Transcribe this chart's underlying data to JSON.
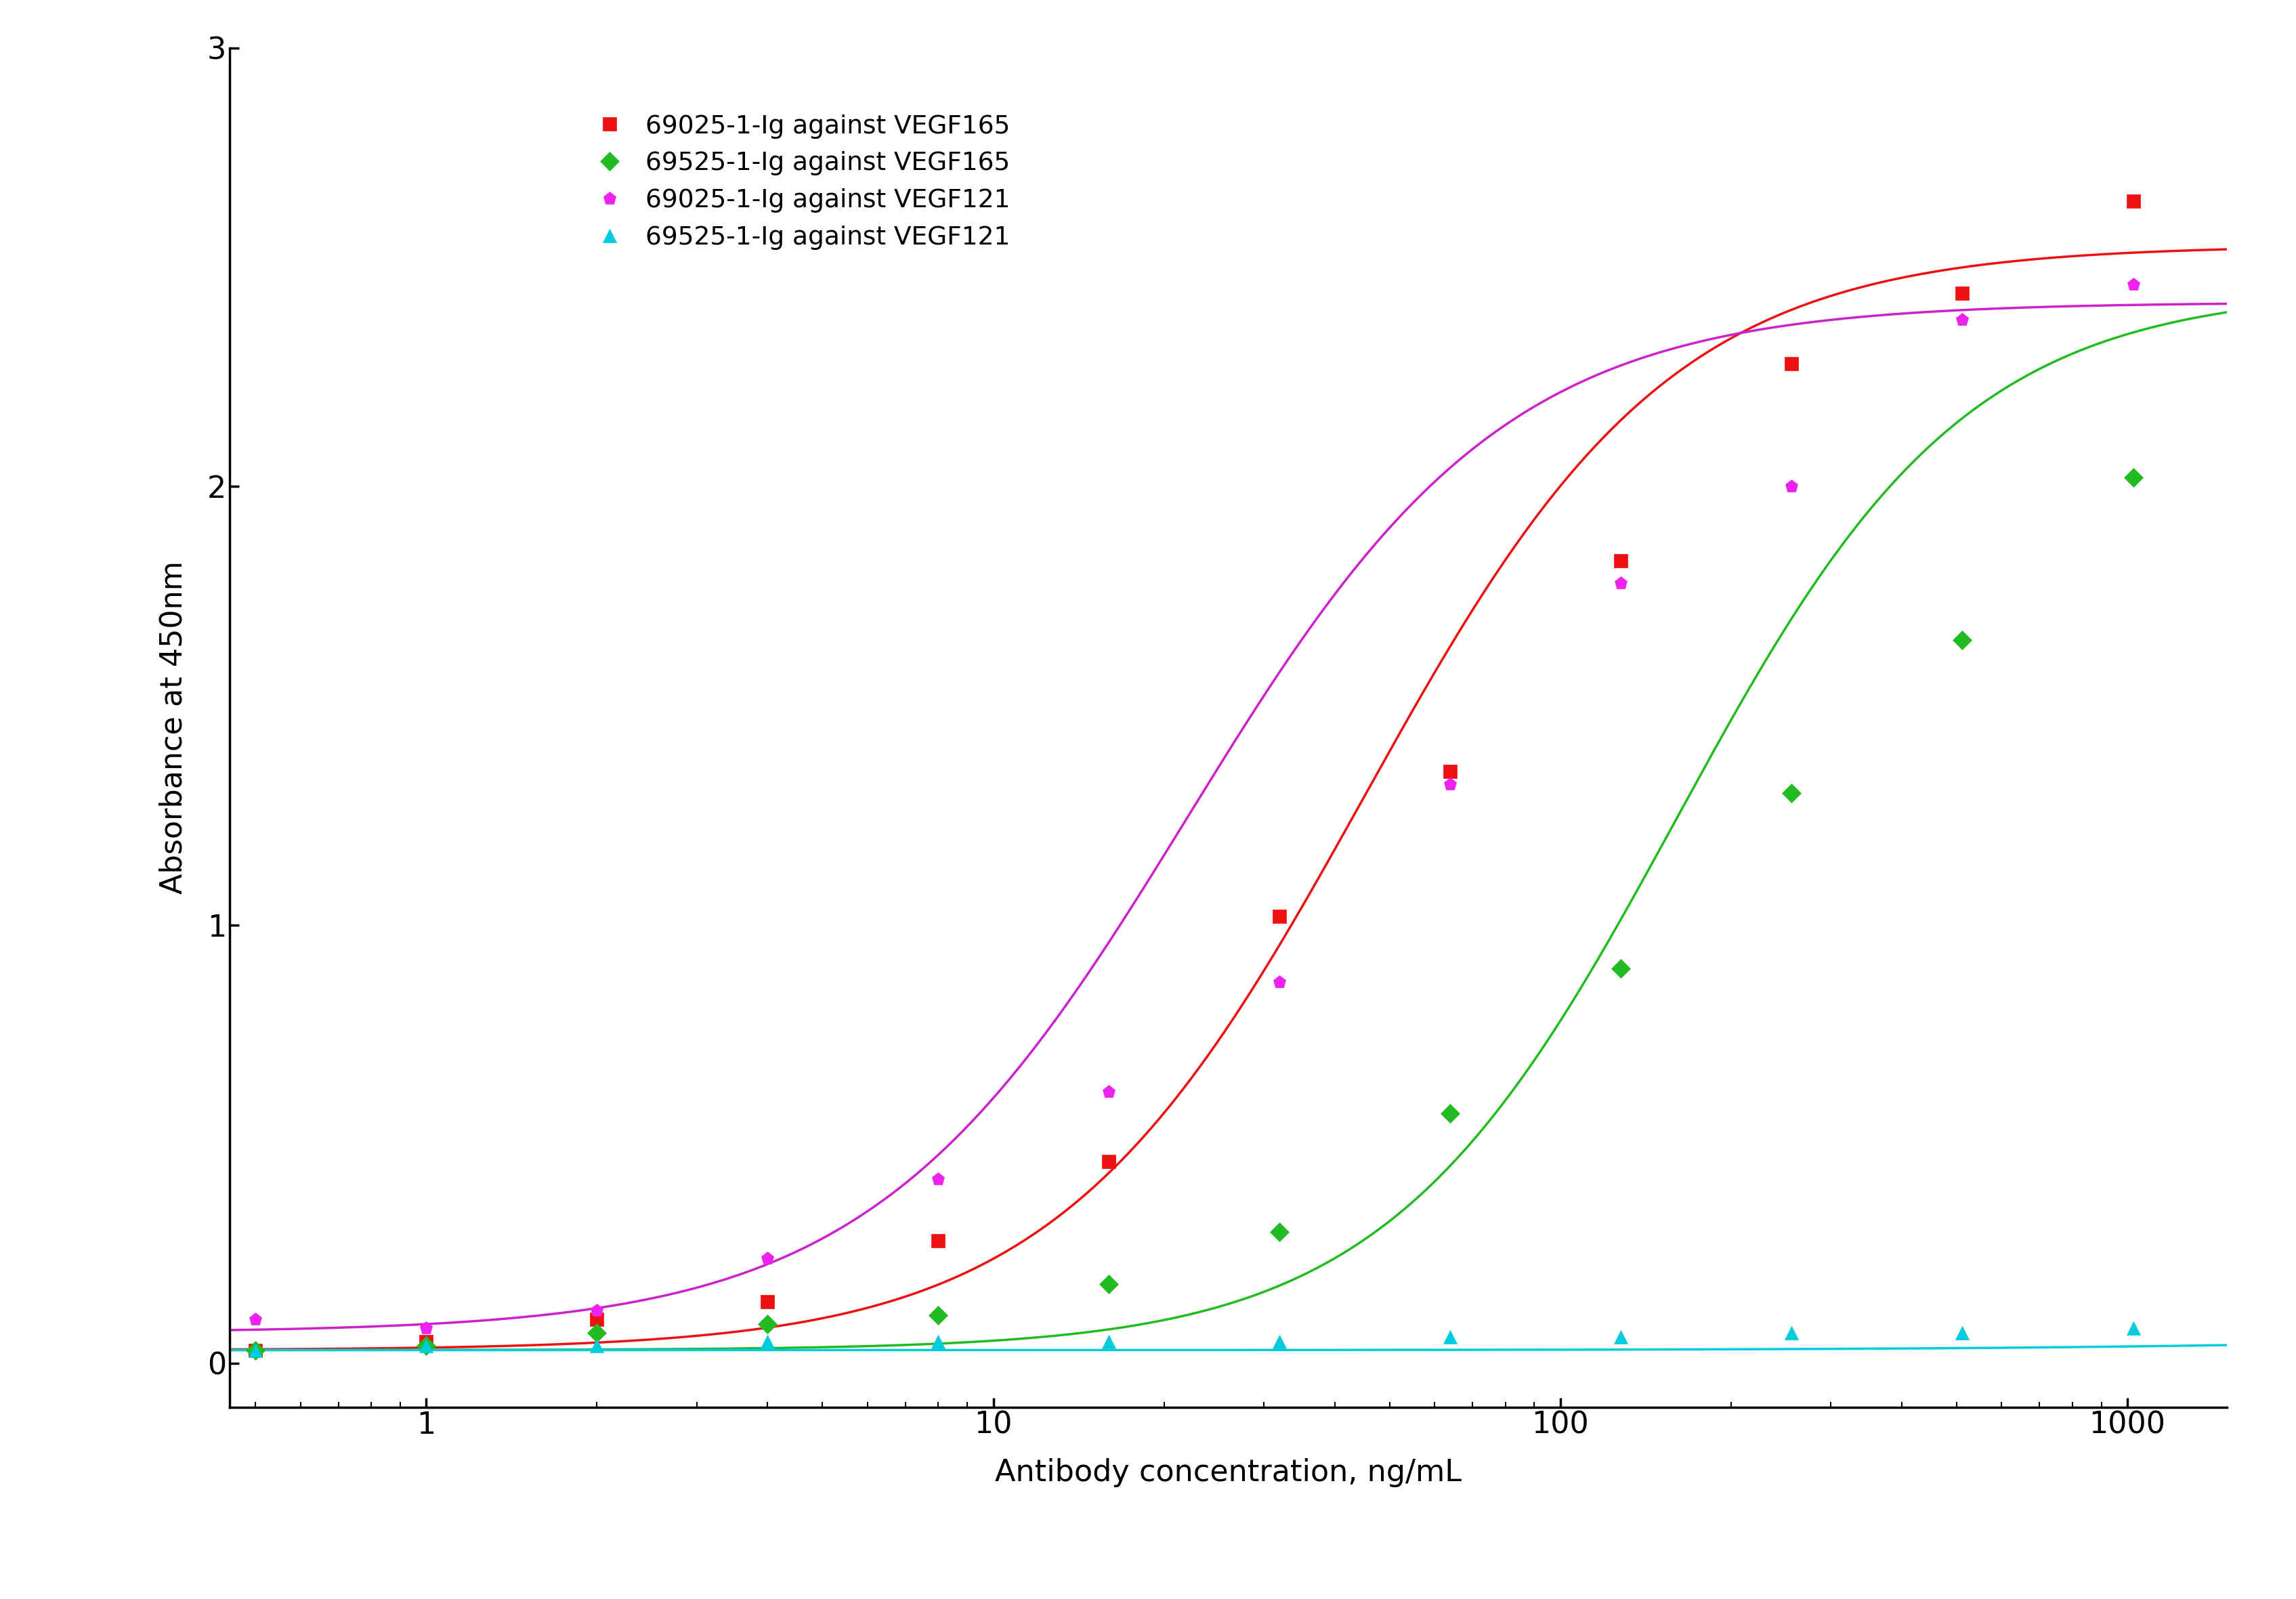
{
  "series": [
    {
      "label": "69025-1-Ig against VEGF165",
      "color": "#ee1111",
      "marker": "s",
      "marker_color": "#ee1111",
      "x": [
        0.5,
        1.0,
        2.0,
        4.0,
        8.0,
        16.0,
        32.0,
        64.0,
        128.0,
        256.0,
        512.0,
        1024.0
      ],
      "y": [
        0.03,
        0.05,
        0.1,
        0.14,
        0.28,
        0.46,
        1.02,
        1.35,
        1.83,
        2.28,
        2.44,
        2.65
      ],
      "fit_top": 2.55,
      "fit_bottom": 0.03,
      "fit_ec50": 45.0,
      "fit_hill": 1.6
    },
    {
      "label": "69525-1-Ig against VEGF165",
      "color": "#22bb22",
      "marker": "D",
      "marker_color": "#22bb22",
      "x": [
        0.5,
        1.0,
        2.0,
        4.0,
        8.0,
        16.0,
        32.0,
        64.0,
        128.0,
        256.0,
        512.0,
        1024.0
      ],
      "y": [
        0.03,
        0.04,
        0.07,
        0.09,
        0.11,
        0.18,
        0.3,
        0.57,
        0.9,
        1.3,
        1.65,
        2.02
      ],
      "fit_top": 2.45,
      "fit_bottom": 0.03,
      "fit_ec50": 160.0,
      "fit_hill": 1.7
    },
    {
      "label": "69025-1-Ig against VEGF121",
      "color": "#cc22cc",
      "marker": "p",
      "marker_color": "#ee22ee",
      "x": [
        0.5,
        1.0,
        2.0,
        4.0,
        8.0,
        16.0,
        32.0,
        64.0,
        128.0,
        256.0,
        512.0,
        1024.0
      ],
      "y": [
        0.1,
        0.08,
        0.12,
        0.24,
        0.42,
        0.62,
        0.87,
        1.32,
        1.78,
        2.0,
        2.38,
        2.46
      ],
      "fit_top": 2.42,
      "fit_bottom": 0.07,
      "fit_ec50": 22.0,
      "fit_hill": 1.55
    },
    {
      "label": "69525-1-Ig against VEGF121",
      "color": "#00ccdd",
      "marker": "^",
      "marker_color": "#00ccdd",
      "x": [
        0.5,
        1.0,
        2.0,
        4.0,
        8.0,
        16.0,
        32.0,
        64.0,
        128.0,
        256.0,
        512.0,
        1024.0
      ],
      "y": [
        0.03,
        0.04,
        0.04,
        0.05,
        0.05,
        0.05,
        0.05,
        0.06,
        0.06,
        0.07,
        0.07,
        0.08
      ],
      "fit_top": 0.08,
      "fit_bottom": 0.03,
      "fit_ec50": 5000.0,
      "fit_hill": 1.0
    }
  ],
  "xlabel": "Antibody concentration, ng/mL",
  "ylabel": "Absorbance at 450nm",
  "xlim": [
    0.45,
    1500
  ],
  "ylim": [
    -0.1,
    3.0
  ],
  "yticks": [
    0,
    1,
    2,
    3
  ],
  "xticks": [
    1,
    10,
    100,
    1000
  ],
  "background_color": "#ffffff",
  "marker_size": 14,
  "line_width": 2.5,
  "font_size": 32,
  "legend_fontsize": 27
}
